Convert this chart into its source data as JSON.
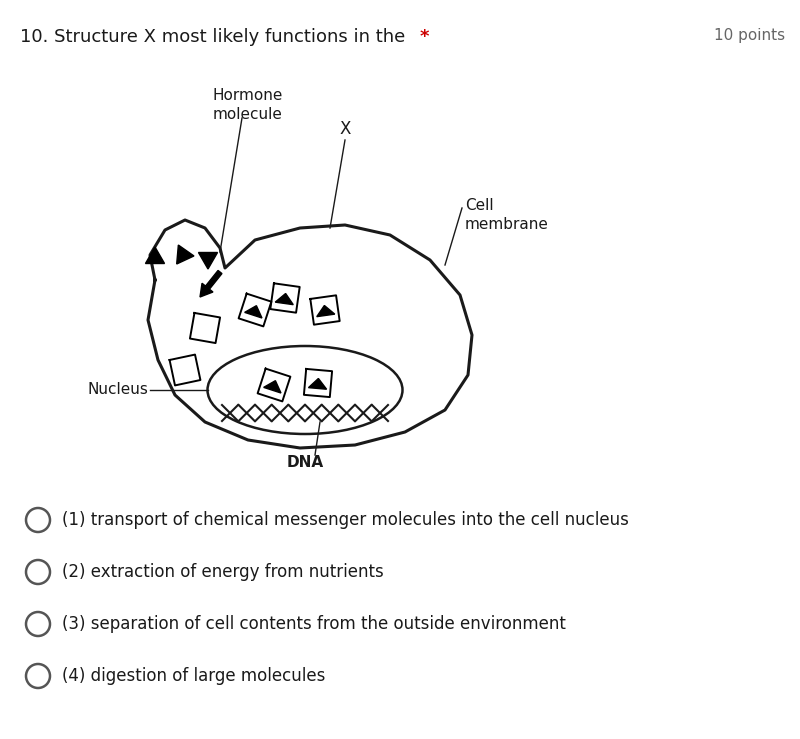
{
  "title": "10. Structure X most likely functions in the",
  "title_star": "*",
  "points_text": "10 points",
  "hormone_label": "Hormone\nmolecule",
  "x_label": "X",
  "cell_membrane_label": "Cell\nmembrane",
  "nucleus_label": "Nucleus",
  "dna_label": "DNA",
  "options": [
    "(1) transport of chemical messenger molecules into the cell nucleus",
    "(2) extraction of energy from nutrients",
    "(3) separation of cell contents from the outside environment",
    "(4) digestion of large molecules"
  ],
  "bg_color": "#ffffff",
  "text_color": "#1a1a1a",
  "title_color": "#1a1a1a",
  "star_color": "#cc0000",
  "points_color": "#666666",
  "draw_color": "#1a1a1a",
  "option_circle_color": "#555555",
  "fig_width": 8.0,
  "fig_height": 7.39,
  "dpi": 100
}
